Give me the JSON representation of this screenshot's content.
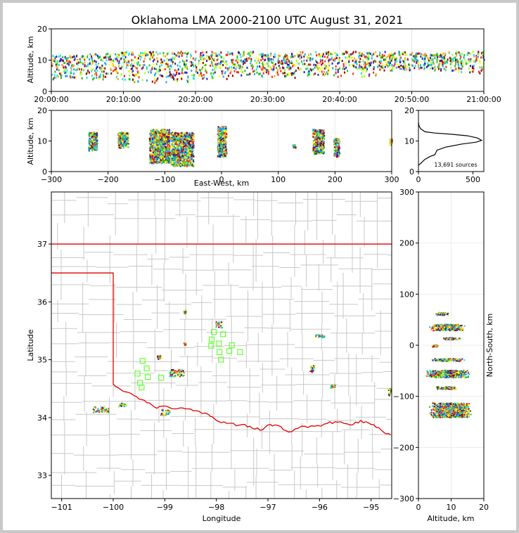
{
  "title": "Oklahoma LMA 2000-2100 UTC August 31, 2021",
  "colors": {
    "frame_bg": "#c8c8c8",
    "plot_bg": "#ffffff",
    "county_lines": "#c8c8c8",
    "state_border": "#e00000",
    "station_markers": "#66ff33",
    "histogram_line": "#000000",
    "source_colormap": [
      "#2020c8",
      "#20a0ff",
      "#20e0e0",
      "#20c020",
      "#a0ff20",
      "#ffff20",
      "#ffa020",
      "#ff2020",
      "#900000"
    ]
  },
  "chart_data": [
    {
      "id": "time_height",
      "type": "scatter",
      "title": "",
      "ylabel": "Altitude, km",
      "xlabel": "",
      "xlim": [
        "20:00:00",
        "21:00:00"
      ],
      "ylim": [
        0,
        20
      ],
      "x_ticks": [
        "20:00:00",
        "20:10:00",
        "20:20:00",
        "20:30:00",
        "20:40:00",
        "20:50:00",
        "21:00:00"
      ],
      "y_ticks": [
        "0",
        "10",
        "20"
      ],
      "grid": true,
      "clusters": [
        {
          "t0": 0.0,
          "t1": 4.5,
          "z0": 4.0,
          "z1": 12.0
        },
        {
          "t0": 4.5,
          "t1": 9.5,
          "z0": 4.0,
          "z1": 12.5
        },
        {
          "t0": 9.5,
          "t1": 14.5,
          "z0": 3.0,
          "z1": 13.0
        },
        {
          "t0": 14.5,
          "t1": 19.5,
          "z0": 3.0,
          "z1": 13.0
        },
        {
          "t0": 19.5,
          "t1": 24.5,
          "z0": 4.0,
          "z1": 13.0
        },
        {
          "t0": 24.5,
          "t1": 29.5,
          "z0": 5.0,
          "z1": 13.0
        },
        {
          "t0": 29.5,
          "t1": 34.0,
          "z0": 4.5,
          "z1": 12.5
        },
        {
          "t0": 34.0,
          "t1": 39.5,
          "z0": 5.0,
          "z1": 13.0
        },
        {
          "t0": 39.5,
          "t1": 45.0,
          "z0": 5.0,
          "z1": 13.0
        },
        {
          "t0": 45.0,
          "t1": 50.0,
          "z0": 7.0,
          "z1": 13.0
        },
        {
          "t0": 50.0,
          "t1": 54.5,
          "z0": 7.0,
          "z1": 12.5
        },
        {
          "t0": 54.5,
          "t1": 60.0,
          "z0": 6.0,
          "z1": 13.0
        }
      ]
    },
    {
      "id": "ew_height",
      "type": "scatter",
      "title": "",
      "xlabel": "East-West, km",
      "ylabel": "Altitude, km",
      "xlim": [
        -300,
        300
      ],
      "ylim": [
        0,
        20
      ],
      "x_ticks": [
        "−300",
        "−200",
        "−100",
        "0",
        "100",
        "200",
        "300"
      ],
      "y_ticks": [
        "0",
        "10",
        "20"
      ],
      "grid": true,
      "clusters": [
        {
          "x0": -235,
          "x1": -220,
          "z0": 7,
          "z1": 13
        },
        {
          "x0": -183,
          "x1": -165,
          "z0": 8,
          "z1": 13
        },
        {
          "x0": -128,
          "x1": -92,
          "z0": 3,
          "z1": 14
        },
        {
          "x0": -90,
          "x1": -50,
          "z0": 2,
          "z1": 13
        },
        {
          "x0": -8,
          "x1": 8,
          "z0": 5,
          "z1": 15
        },
        {
          "x0": 125,
          "x1": 130,
          "z0": 8,
          "z1": 9
        },
        {
          "x0": 160,
          "x1": 180,
          "z0": 6,
          "z1": 14
        },
        {
          "x0": 197,
          "x1": 207,
          "z0": 5,
          "z1": 11
        },
        {
          "x0": 295,
          "x1": 300,
          "z0": 9,
          "z1": 11
        }
      ]
    },
    {
      "id": "altitude_histogram",
      "type": "line",
      "title": "",
      "xlim": [
        0,
        600
      ],
      "ylim": [
        0,
        20
      ],
      "x_ticks": [
        "0",
        "500"
      ],
      "y_ticks": [
        "0",
        "10",
        "20"
      ],
      "annotation": "13,691 sources",
      "points": [
        [
          0,
          2
        ],
        [
          30,
          3
        ],
        [
          60,
          4
        ],
        [
          110,
          5
        ],
        [
          150,
          5.5
        ],
        [
          170,
          7
        ],
        [
          250,
          8
        ],
        [
          400,
          9
        ],
        [
          530,
          9.6
        ],
        [
          580,
          10.2
        ],
        [
          540,
          11
        ],
        [
          450,
          11.7
        ],
        [
          300,
          12.2
        ],
        [
          150,
          12.6
        ],
        [
          60,
          13
        ],
        [
          20,
          14
        ],
        [
          5,
          15
        ],
        [
          0,
          16
        ]
      ]
    },
    {
      "id": "plan_view",
      "type": "scatter",
      "title": "",
      "xlabel": "Longitude",
      "ylabel": "Latitude",
      "xlim": [
        -101.2,
        -94.6
      ],
      "ylim": [
        32.6,
        37.9
      ],
      "x_ticks": [
        "−101",
        "−100",
        "−99",
        "−98",
        "−97",
        "−96",
        "−95"
      ],
      "y_ticks": [
        "33",
        "34",
        "35",
        "36",
        "37"
      ],
      "right_axis_label": "North-South, km",
      "right_y_ticks": [
        "300",
        "200",
        "100",
        "0",
        "−100",
        "−200",
        "−300"
      ],
      "stations": [
        [
          -98.05,
          35.48
        ],
        [
          -97.87,
          35.44
        ],
        [
          -98.09,
          35.35
        ],
        [
          -97.95,
          35.28
        ],
        [
          -98.1,
          35.24
        ],
        [
          -97.7,
          35.25
        ],
        [
          -97.75,
          35.15
        ],
        [
          -97.54,
          35.13
        ],
        [
          -97.94,
          35.13
        ],
        [
          -97.91,
          35.0
        ],
        [
          -99.43,
          34.98
        ],
        [
          -99.35,
          34.85
        ],
        [
          -99.53,
          34.76
        ],
        [
          -99.33,
          34.7
        ],
        [
          -99.07,
          34.69
        ],
        [
          -99.48,
          34.6
        ],
        [
          -99.45,
          34.52
        ]
      ],
      "clusters": [
        {
          "lon": -97.96,
          "lat": 35.62,
          "w": 0.12,
          "h": 0.12
        },
        {
          "lon": -96.0,
          "lat": 35.42,
          "w": 0.17,
          "h": 0.05
        },
        {
          "lon": -98.62,
          "lat": 35.84,
          "w": 0.04,
          "h": 0.06
        },
        {
          "lon": -98.62,
          "lat": 35.28,
          "w": 0.04,
          "h": 0.04
        },
        {
          "lon": -99.12,
          "lat": 35.05,
          "w": 0.08,
          "h": 0.07
        },
        {
          "lon": -98.78,
          "lat": 34.78,
          "w": 0.28,
          "h": 0.12
        },
        {
          "lon": -99.0,
          "lat": 34.1,
          "w": 0.18,
          "h": 0.1
        },
        {
          "lon": -100.25,
          "lat": 34.15,
          "w": 0.3,
          "h": 0.1
        },
        {
          "lon": -99.83,
          "lat": 34.23,
          "w": 0.15,
          "h": 0.06
        },
        {
          "lon": -95.75,
          "lat": 34.55,
          "w": 0.1,
          "h": 0.06
        },
        {
          "lon": -94.65,
          "lat": 34.45,
          "w": 0.06,
          "h": 0.12
        },
        {
          "lon": -96.15,
          "lat": 34.85,
          "w": 0.08,
          "h": 0.12
        }
      ]
    },
    {
      "id": "ns_height",
      "type": "scatter",
      "title": "",
      "xlabel": "Altitude, km",
      "ylabel": "North-South, km",
      "xlim": [
        0,
        20
      ],
      "ylim": [
        -300,
        300
      ],
      "x_ticks": [
        "0",
        "10",
        "20"
      ],
      "y_ticks": [
        "300",
        "200",
        "100",
        "0",
        "−100",
        "−200",
        "−300"
      ],
      "clusters": [
        {
          "z0": 3,
          "z1": 14,
          "y0": 30,
          "y1": 42
        },
        {
          "z0": 7,
          "z1": 13,
          "y0": 12,
          "y1": 16
        },
        {
          "z0": 5,
          "z1": 9,
          "y0": 60,
          "y1": 65
        },
        {
          "z0": 4,
          "z1": 6,
          "y0": -2,
          "y1": 2
        },
        {
          "z0": 3,
          "z1": 14,
          "y0": -30,
          "y1": -25
        },
        {
          "z0": 2,
          "z1": 16,
          "y0": -62,
          "y1": -48
        },
        {
          "z0": 5,
          "z1": 12,
          "y0": -85,
          "y1": -80
        },
        {
          "z0": 3,
          "z1": 16,
          "y0": -140,
          "y1": -112
        }
      ]
    }
  ]
}
